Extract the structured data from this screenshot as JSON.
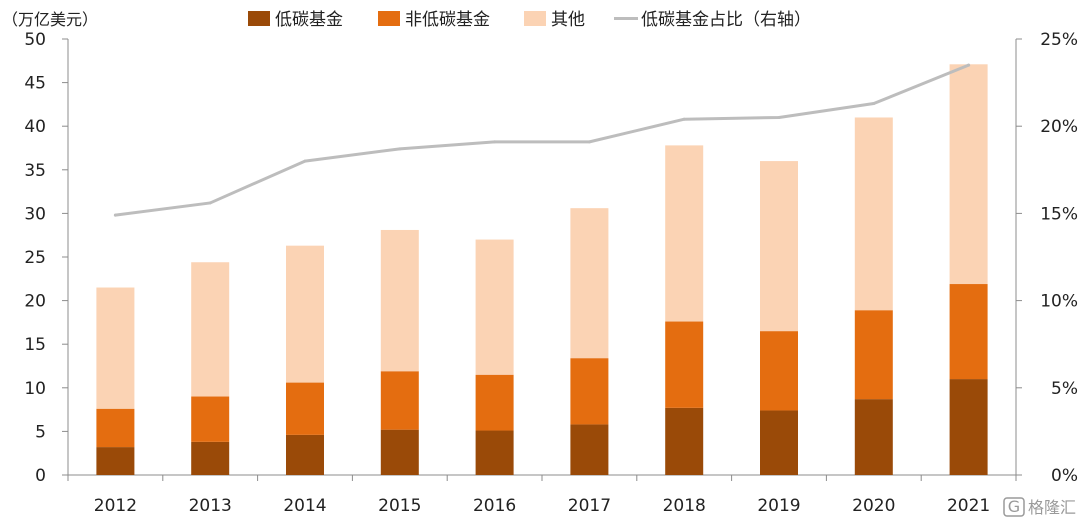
{
  "chart_data": {
    "type": "bar",
    "stacked": true,
    "categories": [
      "2012",
      "2013",
      "2014",
      "2015",
      "2016",
      "2017",
      "2018",
      "2019",
      "2020",
      "2021"
    ],
    "series": [
      {
        "name": "低碳基金",
        "kind": "bar",
        "color": "#9A4A08",
        "values": [
          3.2,
          3.8,
          4.6,
          5.2,
          5.1,
          5.8,
          7.7,
          7.4,
          8.7,
          11.0
        ]
      },
      {
        "name": "非低碳基金",
        "kind": "bar",
        "color": "#E46D10",
        "values": [
          4.4,
          5.2,
          6.0,
          6.7,
          6.4,
          7.6,
          9.9,
          9.1,
          10.2,
          10.9
        ]
      },
      {
        "name": "其他",
        "kind": "bar",
        "color": "#FBD3B4",
        "values": [
          13.9,
          15.4,
          15.7,
          16.2,
          15.5,
          17.2,
          20.2,
          19.5,
          22.1,
          25.2
        ]
      },
      {
        "name": "低碳基金占比（右轴）",
        "kind": "line",
        "axis": "right",
        "color": "#BDBDBD",
        "values": [
          14.9,
          15.6,
          18.0,
          18.7,
          19.1,
          19.1,
          20.4,
          20.5,
          21.3,
          23.5
        ]
      }
    ],
    "y_left": {
      "unit_label": "（万亿美元）",
      "min": 0,
      "max": 50,
      "step": 5,
      "ticks": [
        "0",
        "5",
        "10",
        "15",
        "20",
        "25",
        "30",
        "35",
        "40",
        "45",
        "50"
      ]
    },
    "y_right": {
      "min": 0,
      "max": 25,
      "step": 5,
      "ticks": [
        "0%",
        "5%",
        "10%",
        "15%",
        "20%",
        "25%"
      ]
    },
    "legend_position": "top",
    "grid": false,
    "watermark": "格隆汇"
  }
}
